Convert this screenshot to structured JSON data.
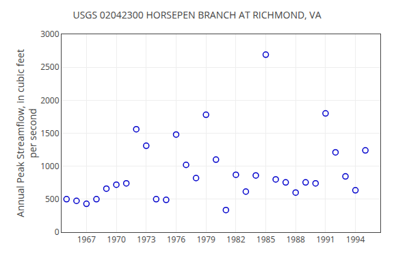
{
  "chart_data": {
    "type": "scatter",
    "title": "USGS 02042300 HORSEPEN BRANCH AT RICHMOND, VA",
    "ylabel": "Annual Peak Streamflow, in cubic feet\nper second",
    "x": [
      1965,
      1966,
      1967,
      1968,
      1969,
      1970,
      1971,
      1972,
      1973,
      1974,
      1975,
      1976,
      1977,
      1978,
      1979,
      1980,
      1981,
      1982,
      1983,
      1984,
      1985,
      1986,
      1987,
      1988,
      1989,
      1990,
      1991,
      1992,
      1993,
      1994,
      1995
    ],
    "values": [
      500,
      475,
      430,
      500,
      660,
      720,
      740,
      1560,
      1310,
      500,
      490,
      1480,
      1020,
      820,
      1780,
      1100,
      335,
      870,
      615,
      860,
      2690,
      800,
      755,
      600,
      755,
      740,
      1800,
      1210,
      845,
      635,
      1240
    ],
    "xlim": [
      1964.5,
      1996.5
    ],
    "ylim": [
      0,
      3000
    ],
    "xticks": [
      1967,
      1970,
      1973,
      1976,
      1979,
      1982,
      1985,
      1988,
      1991,
      1994
    ],
    "yticks": [
      0,
      500,
      1000,
      1500,
      2000,
      2500,
      3000
    ],
    "color": "#0000CC",
    "marker": "circle-open",
    "grid": true
  }
}
